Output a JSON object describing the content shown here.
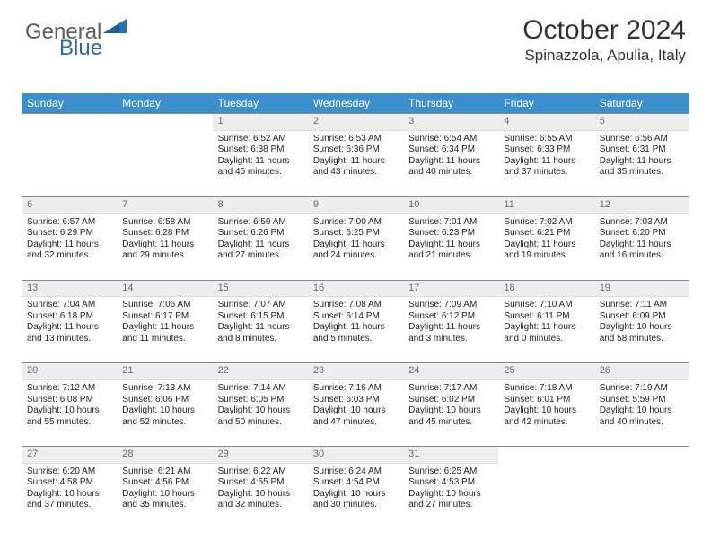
{
  "logo": {
    "part1": "General",
    "part2": "Blue",
    "triangle_color": "#1f74b9"
  },
  "title": "October 2024",
  "location": "Spinazzola, Apulia, Italy",
  "colors": {
    "header_bg": "#3b8fca",
    "header_text": "#ffffff",
    "daynum_bg": "#ededed",
    "daynum_text": "#6a6a6a",
    "border": "#7a8aa0",
    "body_text": "#222222",
    "page_bg": "#ffffff"
  },
  "weekdays": [
    "Sunday",
    "Monday",
    "Tuesday",
    "Wednesday",
    "Thursday",
    "Friday",
    "Saturday"
  ],
  "weeks": [
    [
      null,
      null,
      {
        "n": "1",
        "sunrise": "6:52 AM",
        "sunset": "6:38 PM",
        "dl1": "11 hours",
        "dl2": "and 45 minutes."
      },
      {
        "n": "2",
        "sunrise": "6:53 AM",
        "sunset": "6:36 PM",
        "dl1": "11 hours",
        "dl2": "and 43 minutes."
      },
      {
        "n": "3",
        "sunrise": "6:54 AM",
        "sunset": "6:34 PM",
        "dl1": "11 hours",
        "dl2": "and 40 minutes."
      },
      {
        "n": "4",
        "sunrise": "6:55 AM",
        "sunset": "6:33 PM",
        "dl1": "11 hours",
        "dl2": "and 37 minutes."
      },
      {
        "n": "5",
        "sunrise": "6:56 AM",
        "sunset": "6:31 PM",
        "dl1": "11 hours",
        "dl2": "and 35 minutes."
      }
    ],
    [
      {
        "n": "6",
        "sunrise": "6:57 AM",
        "sunset": "6:29 PM",
        "dl1": "11 hours",
        "dl2": "and 32 minutes."
      },
      {
        "n": "7",
        "sunrise": "6:58 AM",
        "sunset": "6:28 PM",
        "dl1": "11 hours",
        "dl2": "and 29 minutes."
      },
      {
        "n": "8",
        "sunrise": "6:59 AM",
        "sunset": "6:26 PM",
        "dl1": "11 hours",
        "dl2": "and 27 minutes."
      },
      {
        "n": "9",
        "sunrise": "7:00 AM",
        "sunset": "6:25 PM",
        "dl1": "11 hours",
        "dl2": "and 24 minutes."
      },
      {
        "n": "10",
        "sunrise": "7:01 AM",
        "sunset": "6:23 PM",
        "dl1": "11 hours",
        "dl2": "and 21 minutes."
      },
      {
        "n": "11",
        "sunrise": "7:02 AM",
        "sunset": "6:21 PM",
        "dl1": "11 hours",
        "dl2": "and 19 minutes."
      },
      {
        "n": "12",
        "sunrise": "7:03 AM",
        "sunset": "6:20 PM",
        "dl1": "11 hours",
        "dl2": "and 16 minutes."
      }
    ],
    [
      {
        "n": "13",
        "sunrise": "7:04 AM",
        "sunset": "6:18 PM",
        "dl1": "11 hours",
        "dl2": "and 13 minutes."
      },
      {
        "n": "14",
        "sunrise": "7:06 AM",
        "sunset": "6:17 PM",
        "dl1": "11 hours",
        "dl2": "and 11 minutes."
      },
      {
        "n": "15",
        "sunrise": "7:07 AM",
        "sunset": "6:15 PM",
        "dl1": "11 hours",
        "dl2": "and 8 minutes."
      },
      {
        "n": "16",
        "sunrise": "7:08 AM",
        "sunset": "6:14 PM",
        "dl1": "11 hours",
        "dl2": "and 5 minutes."
      },
      {
        "n": "17",
        "sunrise": "7:09 AM",
        "sunset": "6:12 PM",
        "dl1": "11 hours",
        "dl2": "and 3 minutes."
      },
      {
        "n": "18",
        "sunrise": "7:10 AM",
        "sunset": "6:11 PM",
        "dl1": "11 hours",
        "dl2": "and 0 minutes."
      },
      {
        "n": "19",
        "sunrise": "7:11 AM",
        "sunset": "6:09 PM",
        "dl1": "10 hours",
        "dl2": "and 58 minutes."
      }
    ],
    [
      {
        "n": "20",
        "sunrise": "7:12 AM",
        "sunset": "6:08 PM",
        "dl1": "10 hours",
        "dl2": "and 55 minutes."
      },
      {
        "n": "21",
        "sunrise": "7:13 AM",
        "sunset": "6:06 PM",
        "dl1": "10 hours",
        "dl2": "and 52 minutes."
      },
      {
        "n": "22",
        "sunrise": "7:14 AM",
        "sunset": "6:05 PM",
        "dl1": "10 hours",
        "dl2": "and 50 minutes."
      },
      {
        "n": "23",
        "sunrise": "7:16 AM",
        "sunset": "6:03 PM",
        "dl1": "10 hours",
        "dl2": "and 47 minutes."
      },
      {
        "n": "24",
        "sunrise": "7:17 AM",
        "sunset": "6:02 PM",
        "dl1": "10 hours",
        "dl2": "and 45 minutes."
      },
      {
        "n": "25",
        "sunrise": "7:18 AM",
        "sunset": "6:01 PM",
        "dl1": "10 hours",
        "dl2": "and 42 minutes."
      },
      {
        "n": "26",
        "sunrise": "7:19 AM",
        "sunset": "5:59 PM",
        "dl1": "10 hours",
        "dl2": "and 40 minutes."
      }
    ],
    [
      {
        "n": "27",
        "sunrise": "6:20 AM",
        "sunset": "4:58 PM",
        "dl1": "10 hours",
        "dl2": "and 37 minutes."
      },
      {
        "n": "28",
        "sunrise": "6:21 AM",
        "sunset": "4:56 PM",
        "dl1": "10 hours",
        "dl2": "and 35 minutes."
      },
      {
        "n": "29",
        "sunrise": "6:22 AM",
        "sunset": "4:55 PM",
        "dl1": "10 hours",
        "dl2": "and 32 minutes."
      },
      {
        "n": "30",
        "sunrise": "6:24 AM",
        "sunset": "4:54 PM",
        "dl1": "10 hours",
        "dl2": "and 30 minutes."
      },
      {
        "n": "31",
        "sunrise": "6:25 AM",
        "sunset": "4:53 PM",
        "dl1": "10 hours",
        "dl2": "and 27 minutes."
      },
      null,
      null
    ]
  ],
  "labels": {
    "sunrise": "Sunrise:",
    "sunset": "Sunset:",
    "daylight": "Daylight:"
  }
}
